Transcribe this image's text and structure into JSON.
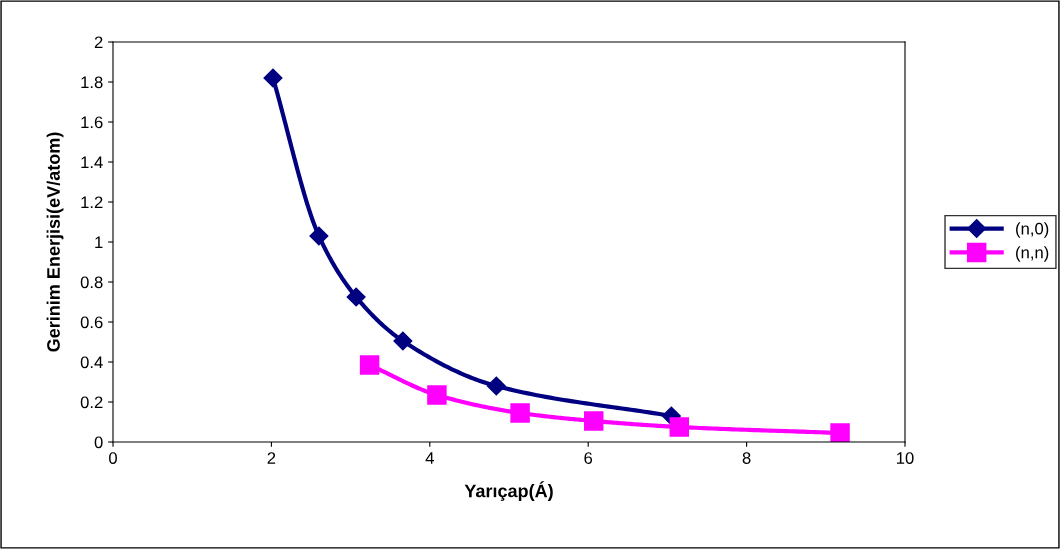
{
  "chart_data": {
    "type": "line",
    "xlabel": "Yarıçap(Á)",
    "ylabel": "Gerinim Enerjisi(eV/atom)",
    "xlim": [
      0,
      10
    ],
    "xticks": [
      0,
      2,
      4,
      6,
      8,
      10
    ],
    "ylim": [
      0,
      2
    ],
    "yticks": [
      0,
      0.2,
      0.4,
      0.6,
      0.8,
      1,
      1.2,
      1.4,
      1.6,
      1.8,
      2
    ],
    "grid": false,
    "legend": "right",
    "line_style": "solid",
    "series": [
      {
        "name": "(n,0)",
        "color": "#000080",
        "marker": "diamond",
        "x": [
          2.02,
          2.6,
          3.07,
          3.66,
          4.84,
          7.05
        ],
        "values": [
          1.82,
          1.03,
          0.725,
          0.505,
          0.28,
          0.13
        ]
      },
      {
        "name": "(n,n)",
        "color": "#ff00ff",
        "marker": "square",
        "x": [
          3.24,
          4.09,
          5.14,
          6.07,
          7.15,
          9.18
        ],
        "values": [
          0.385,
          0.235,
          0.145,
          0.105,
          0.075,
          0.045
        ]
      }
    ]
  }
}
